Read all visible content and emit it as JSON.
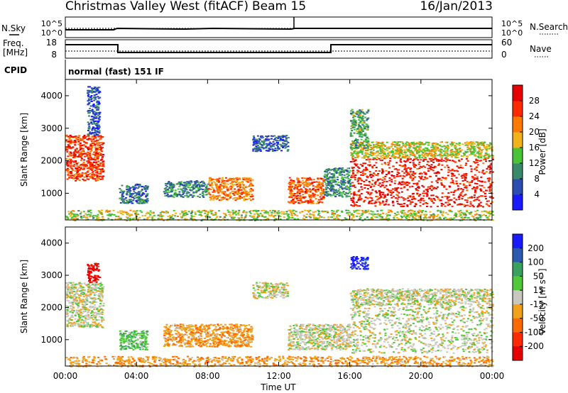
{
  "header": {
    "title": "Christmas Valley West (fitACF)",
    "beam": "Beam 15",
    "date": "16/Jan/2013"
  },
  "aux": {
    "nsky_label": "N.Sky",
    "nsky_ticks": [
      "10^5",
      "10^0"
    ],
    "nsearch_label": "N.Search",
    "nsearch_ticks": [
      "10^5",
      "10^0"
    ],
    "freq_label": "Freq.",
    "freq_unit": "[MHz]",
    "freq_ticks": [
      "18",
      "8"
    ],
    "nave_label": "Nave",
    "nave_ticks": [
      "60",
      "0"
    ],
    "cpid_label": "CPID",
    "cpid_value": "normal (fast) 151 IF"
  },
  "chart_data": [
    {
      "type": "heatmap",
      "name": "power",
      "ylabel": "Slant Range [km]",
      "xlabel": "Time UT",
      "x_ticks": [
        "00:00",
        "04:00",
        "08:00",
        "12:00",
        "16:00",
        "20:00",
        "00:00"
      ],
      "xlim_hours": [
        0,
        24
      ],
      "y_ticks": [
        1000,
        2000,
        3000,
        4000
      ],
      "ylim": [
        180,
        4500
      ],
      "colorbar": {
        "label": "Power [dB]",
        "ticks": [
          4,
          8,
          12,
          16,
          20,
          24,
          28
        ],
        "range": [
          0,
          32
        ],
        "colors": [
          "#1a1aff",
          "#2c4db0",
          "#3a8a6a",
          "#49c436",
          "#f2b21a",
          "#ff7a00",
          "#ff2a00",
          "#e60000"
        ]
      },
      "regions": [
        {
          "t": [
            0.0,
            2.1
          ],
          "r": [
            1400,
            2800
          ],
          "level": 26
        },
        {
          "t": [
            1.2,
            1.9
          ],
          "r": [
            2800,
            4300
          ],
          "level": 6
        },
        {
          "t": [
            3.0,
            4.6
          ],
          "r": [
            700,
            1300
          ],
          "level": 8
        },
        {
          "t": [
            5.5,
            8.0
          ],
          "r": [
            900,
            1400
          ],
          "level": 9
        },
        {
          "t": [
            8.0,
            10.5
          ],
          "r": [
            800,
            1500
          ],
          "level": 22
        },
        {
          "t": [
            10.5,
            12.5
          ],
          "r": [
            2300,
            2800
          ],
          "level": 6
        },
        {
          "t": [
            12.5,
            14.5
          ],
          "r": [
            700,
            1500
          ],
          "level": 24
        },
        {
          "t": [
            14.5,
            16.0
          ],
          "r": [
            900,
            1800
          ],
          "level": 10
        },
        {
          "t": [
            16.0,
            24.0
          ],
          "r": [
            600,
            2100
          ],
          "level": 28
        },
        {
          "t": [
            16.0,
            24.0
          ],
          "r": [
            2100,
            2600
          ],
          "level": 17
        },
        {
          "t": [
            16.0,
            17.0
          ],
          "r": [
            2400,
            3600
          ],
          "level": 12
        },
        {
          "t": [
            0.0,
            24.0
          ],
          "r": [
            180,
            500
          ],
          "level": 16
        }
      ]
    },
    {
      "type": "heatmap",
      "name": "velocity",
      "ylabel": "Slant Range [km]",
      "xlabel": "Time UT",
      "x_ticks": [
        "00:00",
        "04:00",
        "08:00",
        "12:00",
        "16:00",
        "20:00",
        "00:00"
      ],
      "xlim_hours": [
        0,
        24
      ],
      "y_ticks": [
        1000,
        2000,
        3000,
        4000
      ],
      "ylim": [
        180,
        4500
      ],
      "colorbar": {
        "label": "Velocity [m s⁻¹]",
        "ticks": [
          200,
          100,
          50,
          15,
          -15,
          -50,
          -100,
          -200
        ],
        "colors": [
          "#1a1aff",
          "#2c5ab0",
          "#3aa060",
          "#50c83a",
          "#c8c8c0",
          "#f2a21a",
          "#ff6a00",
          "#ff2a00",
          "#e60000"
        ]
      },
      "regions": [
        {
          "t": [
            0.0,
            2.1
          ],
          "r": [
            1400,
            2800
          ],
          "value": 0
        },
        {
          "t": [
            1.2,
            1.9
          ],
          "r": [
            2800,
            3400
          ],
          "value": -220
        },
        {
          "t": [
            3.0,
            4.6
          ],
          "r": [
            700,
            1300
          ],
          "value": 40
        },
        {
          "t": [
            5.5,
            10.5
          ],
          "r": [
            800,
            1500
          ],
          "value": -40
        },
        {
          "t": [
            10.5,
            12.5
          ],
          "r": [
            2300,
            2800
          ],
          "value": 0
        },
        {
          "t": [
            12.5,
            16.0
          ],
          "r": [
            700,
            1500
          ],
          "value": 0
        },
        {
          "t": [
            16.0,
            24.0
          ],
          "r": [
            600,
            2100
          ],
          "value": 0
        },
        {
          "t": [
            16.0,
            24.0
          ],
          "r": [
            2100,
            2600
          ],
          "value": 0
        },
        {
          "t": [
            16.0,
            17.0
          ],
          "r": [
            3200,
            3600
          ],
          "value": 220
        },
        {
          "t": [
            0.0,
            24.0
          ],
          "r": [
            180,
            500
          ],
          "value": -40
        }
      ]
    }
  ]
}
